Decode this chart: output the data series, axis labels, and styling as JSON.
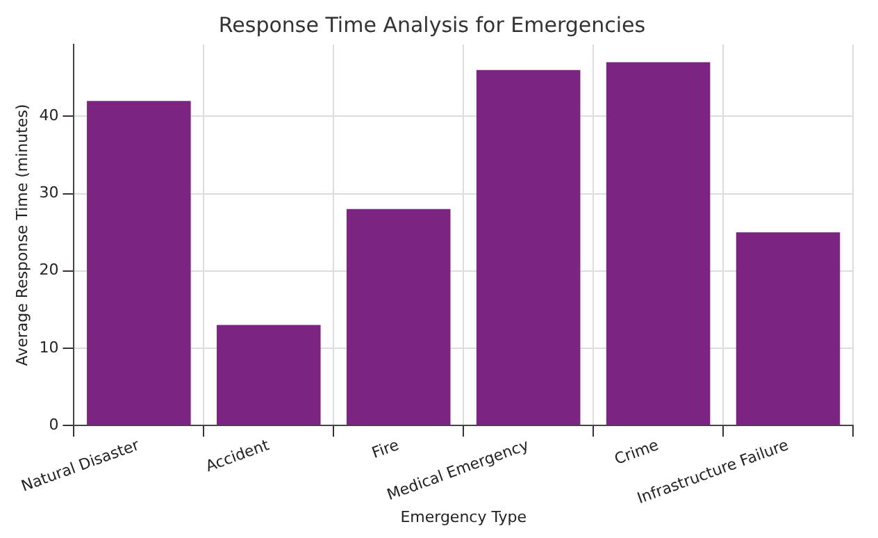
{
  "chart_data": {
    "type": "bar",
    "title": "Response Time Analysis for Emergencies",
    "xlabel": "Emergency Type",
    "ylabel": "Average Response Time (minutes)",
    "categories": [
      "Natural Disaster",
      "Accident",
      "Fire",
      "Medical Emergency",
      "Crime",
      "Infrastructure Failure"
    ],
    "values": [
      42,
      13,
      28,
      46,
      47,
      25
    ],
    "color": "#7b2481",
    "ylim": [
      0,
      49.3
    ],
    "yticks": [
      0,
      10,
      20,
      30,
      40
    ],
    "grid": true
  }
}
